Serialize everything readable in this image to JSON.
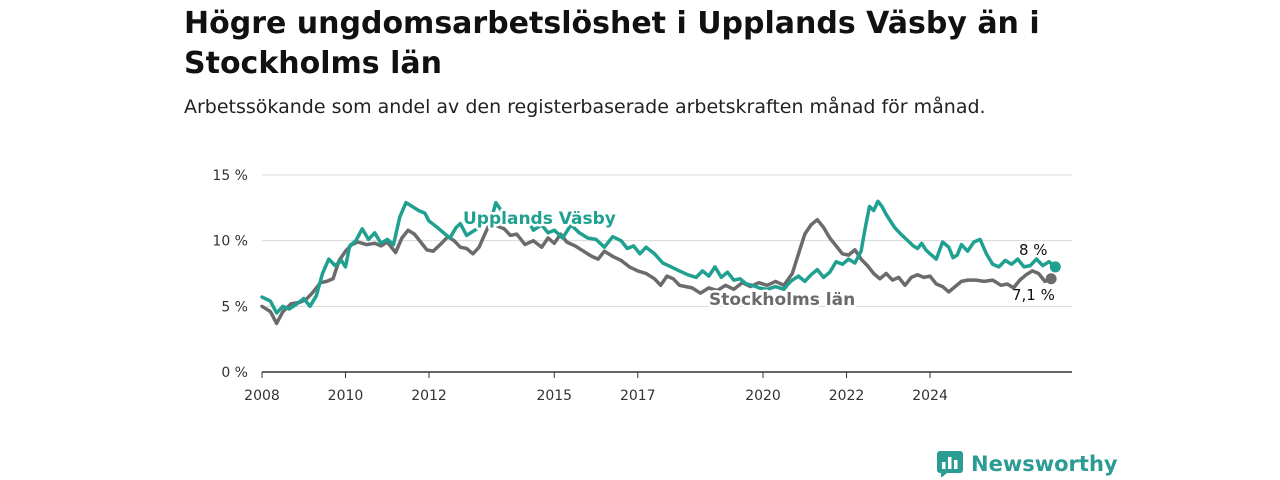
{
  "title": "Högre ungdomsarbetslöshet i Upplands Väsby än i Stockholms län",
  "subtitle": "Arbetssökande som andel av den registerbaserade arbetskraften månad för månad.",
  "brand": {
    "name": "Newsworthy",
    "icon": "newsworthy-logo-icon"
  },
  "chart_data": {
    "type": "line",
    "x_ticks": [
      "2008",
      "2010",
      "2012",
      "2015",
      "2017",
      "2020",
      "2022",
      "2024"
    ],
    "y_ticks": [
      "0 %",
      "5 %",
      "10 %",
      "15 %"
    ],
    "ylim": [
      0,
      15
    ],
    "grid": true,
    "series": [
      {
        "name": "Upplands Väsby",
        "color": "#20a090",
        "end_label": "8 %",
        "points": [
          [
            2008.0,
            5.7
          ],
          [
            2008.2,
            5.4
          ],
          [
            2008.35,
            4.5
          ],
          [
            2008.5,
            5.0
          ],
          [
            2008.65,
            4.8
          ],
          [
            2008.8,
            5.1
          ],
          [
            2009.0,
            5.6
          ],
          [
            2009.15,
            5.0
          ],
          [
            2009.3,
            5.8
          ],
          [
            2009.45,
            7.5
          ],
          [
            2009.6,
            8.6
          ],
          [
            2009.75,
            8.1
          ],
          [
            2009.9,
            8.5
          ],
          [
            2010.0,
            8.0
          ],
          [
            2010.1,
            9.6
          ],
          [
            2010.25,
            10.0
          ],
          [
            2010.4,
            10.9
          ],
          [
            2010.55,
            10.1
          ],
          [
            2010.7,
            10.6
          ],
          [
            2010.85,
            9.8
          ],
          [
            2011.0,
            10.1
          ],
          [
            2011.15,
            9.7
          ],
          [
            2011.3,
            11.8
          ],
          [
            2011.45,
            12.9
          ],
          [
            2011.6,
            12.6
          ],
          [
            2011.75,
            12.3
          ],
          [
            2011.9,
            12.1
          ],
          [
            2012.0,
            11.5
          ],
          [
            2012.2,
            11.0
          ],
          [
            2012.35,
            10.6
          ],
          [
            2012.5,
            10.2
          ],
          [
            2012.65,
            11.0
          ],
          [
            2012.75,
            11.3
          ],
          [
            2012.9,
            10.4
          ],
          [
            2013.0,
            10.6
          ],
          [
            2013.15,
            10.9
          ],
          [
            2013.3,
            11.6
          ],
          [
            2013.45,
            11.1
          ],
          [
            2013.6,
            12.9
          ],
          [
            2013.75,
            12.2
          ],
          [
            2013.9,
            11.8
          ],
          [
            2014.1,
            11.4
          ],
          [
            2014.3,
            12.0
          ],
          [
            2014.5,
            10.8
          ],
          [
            2014.7,
            11.2
          ],
          [
            2014.85,
            10.6
          ],
          [
            2015.0,
            10.8
          ],
          [
            2015.2,
            10.2
          ],
          [
            2015.4,
            11.2
          ],
          [
            2015.6,
            10.6
          ],
          [
            2015.8,
            10.2
          ],
          [
            2016.0,
            10.1
          ],
          [
            2016.2,
            9.5
          ],
          [
            2016.4,
            10.3
          ],
          [
            2016.6,
            10.0
          ],
          [
            2016.75,
            9.4
          ],
          [
            2016.9,
            9.6
          ],
          [
            2017.05,
            9.0
          ],
          [
            2017.2,
            9.5
          ],
          [
            2017.4,
            9.0
          ],
          [
            2017.6,
            8.3
          ],
          [
            2017.8,
            8.0
          ],
          [
            2018.0,
            7.7
          ],
          [
            2018.2,
            7.4
          ],
          [
            2018.4,
            7.2
          ],
          [
            2018.55,
            7.7
          ],
          [
            2018.7,
            7.3
          ],
          [
            2018.85,
            8.0
          ],
          [
            2019.0,
            7.2
          ],
          [
            2019.15,
            7.6
          ],
          [
            2019.3,
            7.0
          ],
          [
            2019.45,
            7.1
          ],
          [
            2019.6,
            6.7
          ],
          [
            2019.75,
            6.6
          ],
          [
            2019.9,
            6.4
          ],
          [
            2020.1,
            6.3
          ],
          [
            2020.3,
            6.5
          ],
          [
            2020.5,
            6.3
          ],
          [
            2020.6,
            6.7
          ],
          [
            2020.7,
            7.0
          ],
          [
            2020.85,
            7.3
          ],
          [
            2021.0,
            6.9
          ],
          [
            2021.15,
            7.4
          ],
          [
            2021.3,
            7.8
          ],
          [
            2021.45,
            7.2
          ],
          [
            2021.6,
            7.6
          ],
          [
            2021.75,
            8.4
          ],
          [
            2021.9,
            8.2
          ],
          [
            2022.05,
            8.6
          ],
          [
            2022.2,
            8.3
          ],
          [
            2022.35,
            9.2
          ],
          [
            2022.45,
            11.0
          ],
          [
            2022.55,
            12.6
          ],
          [
            2022.65,
            12.3
          ],
          [
            2022.75,
            13.0
          ],
          [
            2022.85,
            12.6
          ],
          [
            2022.95,
            12.0
          ],
          [
            2023.05,
            11.5
          ],
          [
            2023.15,
            11.0
          ],
          [
            2023.3,
            10.5
          ],
          [
            2023.4,
            10.2
          ],
          [
            2023.5,
            9.9
          ],
          [
            2023.6,
            9.6
          ],
          [
            2023.7,
            9.4
          ],
          [
            2023.8,
            9.8
          ],
          [
            2023.9,
            9.3
          ],
          [
            2024.0,
            9.0
          ],
          [
            2024.15,
            8.6
          ],
          [
            2024.3,
            9.9
          ],
          [
            2024.45,
            9.5
          ],
          [
            2024.55,
            8.7
          ],
          [
            2024.65,
            8.9
          ],
          [
            2024.75,
            9.7
          ],
          [
            2024.9,
            9.2
          ],
          [
            2025.05,
            9.9
          ],
          [
            2025.2,
            10.1
          ],
          [
            2025.35,
            9.0
          ],
          [
            2025.5,
            8.2
          ],
          [
            2025.65,
            8.0
          ],
          [
            2025.8,
            8.5
          ],
          [
            2025.95,
            8.2
          ],
          [
            2026.1,
            8.6
          ],
          [
            2026.25,
            8.0
          ],
          [
            2026.4,
            8.1
          ],
          [
            2026.55,
            8.6
          ],
          [
            2026.7,
            8.1
          ],
          [
            2026.85,
            8.4
          ],
          [
            2027.0,
            8.0
          ]
        ]
      },
      {
        "name": "Stockholms län",
        "color": "#6b6b6b",
        "end_label": "7,1 %",
        "points": [
          [
            2008.0,
            5.0
          ],
          [
            2008.2,
            4.6
          ],
          [
            2008.35,
            3.7
          ],
          [
            2008.5,
            4.6
          ],
          [
            2008.7,
            5.2
          ],
          [
            2008.9,
            5.3
          ],
          [
            2009.05,
            5.5
          ],
          [
            2009.2,
            6.0
          ],
          [
            2009.4,
            6.8
          ],
          [
            2009.55,
            6.9
          ],
          [
            2009.7,
            7.1
          ],
          [
            2009.85,
            8.5
          ],
          [
            2010.0,
            9.2
          ],
          [
            2010.15,
            9.7
          ],
          [
            2010.3,
            9.9
          ],
          [
            2010.5,
            9.7
          ],
          [
            2010.7,
            9.8
          ],
          [
            2010.85,
            9.6
          ],
          [
            2011.0,
            9.9
          ],
          [
            2011.2,
            9.1
          ],
          [
            2011.35,
            10.2
          ],
          [
            2011.5,
            10.8
          ],
          [
            2011.65,
            10.5
          ],
          [
            2011.8,
            9.9
          ],
          [
            2011.95,
            9.3
          ],
          [
            2012.1,
            9.2
          ],
          [
            2012.3,
            9.8
          ],
          [
            2012.45,
            10.3
          ],
          [
            2012.6,
            10.0
          ],
          [
            2012.75,
            9.5
          ],
          [
            2012.9,
            9.4
          ],
          [
            2013.05,
            9.0
          ],
          [
            2013.2,
            9.5
          ],
          [
            2013.35,
            10.6
          ],
          [
            2013.5,
            11.6
          ],
          [
            2013.65,
            11.1
          ],
          [
            2013.8,
            10.9
          ],
          [
            2013.95,
            10.4
          ],
          [
            2014.1,
            10.5
          ],
          [
            2014.3,
            9.7
          ],
          [
            2014.5,
            10.0
          ],
          [
            2014.7,
            9.5
          ],
          [
            2014.85,
            10.2
          ],
          [
            2015.0,
            9.8
          ],
          [
            2015.15,
            10.5
          ],
          [
            2015.3,
            9.9
          ],
          [
            2015.5,
            9.6
          ],
          [
            2015.7,
            9.2
          ],
          [
            2015.9,
            8.8
          ],
          [
            2016.05,
            8.6
          ],
          [
            2016.2,
            9.2
          ],
          [
            2016.4,
            8.8
          ],
          [
            2016.6,
            8.5
          ],
          [
            2016.8,
            8.0
          ],
          [
            2017.0,
            7.7
          ],
          [
            2017.2,
            7.5
          ],
          [
            2017.4,
            7.1
          ],
          [
            2017.55,
            6.6
          ],
          [
            2017.7,
            7.3
          ],
          [
            2017.85,
            7.1
          ],
          [
            2018.0,
            6.6
          ],
          [
            2018.15,
            6.5
          ],
          [
            2018.3,
            6.4
          ],
          [
            2018.5,
            6.0
          ],
          [
            2018.7,
            6.4
          ],
          [
            2018.9,
            6.2
          ],
          [
            2019.1,
            6.6
          ],
          [
            2019.3,
            6.3
          ],
          [
            2019.5,
            6.8
          ],
          [
            2019.7,
            6.5
          ],
          [
            2019.9,
            6.8
          ],
          [
            2020.1,
            6.6
          ],
          [
            2020.3,
            6.9
          ],
          [
            2020.5,
            6.6
          ],
          [
            2020.7,
            7.5
          ],
          [
            2020.85,
            9.0
          ],
          [
            2021.0,
            10.5
          ],
          [
            2021.15,
            11.2
          ],
          [
            2021.3,
            11.6
          ],
          [
            2021.45,
            11.0
          ],
          [
            2021.6,
            10.2
          ],
          [
            2021.75,
            9.6
          ],
          [
            2021.9,
            9.0
          ],
          [
            2022.05,
            8.9
          ],
          [
            2022.2,
            9.3
          ],
          [
            2022.35,
            8.6
          ],
          [
            2022.5,
            8.1
          ],
          [
            2022.65,
            7.5
          ],
          [
            2022.8,
            7.1
          ],
          [
            2022.95,
            7.5
          ],
          [
            2023.1,
            7.0
          ],
          [
            2023.25,
            7.2
          ],
          [
            2023.4,
            6.6
          ],
          [
            2023.55,
            7.2
          ],
          [
            2023.7,
            7.4
          ],
          [
            2023.85,
            7.2
          ],
          [
            2024.0,
            7.3
          ],
          [
            2024.15,
            6.7
          ],
          [
            2024.3,
            6.5
          ],
          [
            2024.45,
            6.1
          ],
          [
            2024.6,
            6.5
          ],
          [
            2024.75,
            6.9
          ],
          [
            2024.9,
            7.0
          ],
          [
            2025.1,
            7.0
          ],
          [
            2025.3,
            6.9
          ],
          [
            2025.5,
            7.0
          ],
          [
            2025.7,
            6.6
          ],
          [
            2025.85,
            6.7
          ],
          [
            2026.0,
            6.4
          ],
          [
            2026.15,
            7.0
          ],
          [
            2026.3,
            7.4
          ],
          [
            2026.45,
            7.7
          ],
          [
            2026.6,
            7.5
          ],
          [
            2026.75,
            6.9
          ],
          [
            2026.9,
            7.1
          ]
        ]
      }
    ]
  }
}
